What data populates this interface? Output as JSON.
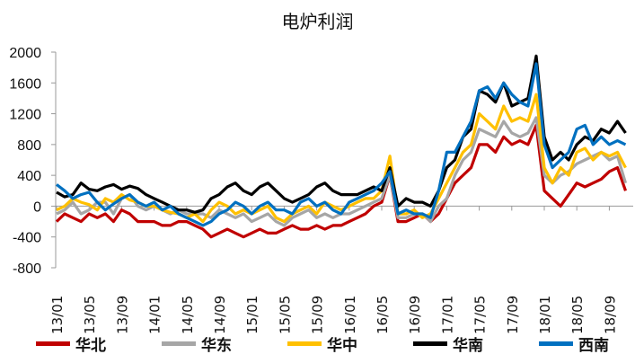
{
  "chart_data": {
    "type": "line",
    "title": "电炉利润",
    "xlabel": "",
    "ylabel": "",
    "ylim": [
      -800,
      2000
    ],
    "yticks": [
      -800,
      -400,
      0,
      400,
      800,
      1200,
      1600,
      2000
    ],
    "x_tick_labels": [
      "13/01",
      "13/05",
      "13/09",
      "14/01",
      "14/05",
      "14/09",
      "15/01",
      "15/05",
      "15/09",
      "16/01",
      "16/05",
      "16/09",
      "17/01",
      "17/05",
      "17/09",
      "18/01",
      "18/05",
      "18/09"
    ],
    "x_start": "2013-01",
    "x_frequency": "monthly",
    "legend_position": "bottom",
    "grid": false,
    "series": [
      {
        "name": "华北",
        "color": "#c00000",
        "values": [
          -200,
          -100,
          -150,
          -200,
          -100,
          -150,
          -100,
          -200,
          -50,
          -100,
          -200,
          -200,
          -200,
          -250,
          -250,
          -200,
          -200,
          -250,
          -300,
          -400,
          -350,
          -300,
          -350,
          -400,
          -350,
          -300,
          -350,
          -350,
          -300,
          -250,
          -300,
          -300,
          -250,
          -300,
          -250,
          -250,
          -200,
          -150,
          -100,
          0,
          50,
          400,
          -200,
          -200,
          -150,
          -100,
          -200,
          -100,
          100,
          300,
          400,
          500,
          800,
          800,
          700,
          900,
          800,
          850,
          800,
          1050,
          200,
          100,
          0,
          150,
          300,
          250,
          300,
          350,
          450,
          500,
          200
        ]
      },
      {
        "name": "华东",
        "color": "#a6a6a6",
        "values": [
          -100,
          -50,
          50,
          -100,
          -50,
          50,
          50,
          -100,
          100,
          150,
          0,
          -50,
          0,
          -50,
          -100,
          -50,
          -100,
          -100,
          -100,
          -150,
          -50,
          -100,
          -150,
          -100,
          -200,
          -150,
          -100,
          -200,
          -250,
          -150,
          -100,
          -50,
          -150,
          -100,
          -150,
          -100,
          -100,
          -50,
          0,
          50,
          100,
          400,
          -150,
          -150,
          -100,
          -100,
          -200,
          0,
          100,
          400,
          600,
          700,
          1000,
          950,
          900,
          1100,
          950,
          900,
          950,
          1150,
          400,
          300,
          400,
          450,
          550,
          600,
          650,
          700,
          600,
          650,
          300
        ]
      },
      {
        "name": "华中",
        "color": "#ffc000",
        "values": [
          -50,
          0,
          100,
          50,
          20,
          -50,
          100,
          50,
          150,
          80,
          50,
          0,
          0,
          -50,
          -80,
          -100,
          -150,
          -100,
          -200,
          -50,
          50,
          0,
          -100,
          -50,
          -100,
          -50,
          0,
          -150,
          -200,
          -100,
          -50,
          0,
          -100,
          50,
          0,
          -50,
          0,
          50,
          100,
          100,
          200,
          650,
          -100,
          -100,
          -50,
          -150,
          -100,
          100,
          300,
          500,
          700,
          800,
          1200,
          1100,
          1000,
          1300,
          1100,
          1150,
          1100,
          1450,
          500,
          300,
          500,
          400,
          700,
          750,
          600,
          700,
          650,
          700,
          500
        ]
      },
      {
        "name": "华南",
        "color": "#000000",
        "values": [
          180,
          120,
          150,
          300,
          220,
          200,
          250,
          280,
          220,
          260,
          230,
          150,
          100,
          50,
          0,
          -50,
          -50,
          -80,
          -50,
          100,
          150,
          250,
          300,
          200,
          150,
          250,
          300,
          200,
          100,
          50,
          100,
          150,
          250,
          300,
          200,
          150,
          150,
          150,
          200,
          250,
          200,
          500,
          0,
          100,
          50,
          50,
          0,
          200,
          500,
          600,
          900,
          1000,
          1500,
          1450,
          1350,
          1600,
          1300,
          1350,
          1400,
          1950,
          900,
          600,
          700,
          600,
          800,
          900,
          850,
          1000,
          950,
          1100,
          950
        ]
      },
      {
        "name": "西南",
        "color": "#0070c0",
        "values": [
          280,
          200,
          100,
          150,
          180,
          50,
          -50,
          30,
          100,
          150,
          50,
          0,
          50,
          -50,
          0,
          -100,
          -150,
          -200,
          -250,
          -200,
          -100,
          -50,
          50,
          0,
          -100,
          0,
          50,
          -50,
          -50,
          -100,
          50,
          100,
          0,
          50,
          -50,
          -100,
          50,
          100,
          150,
          200,
          300,
          450,
          -100,
          -50,
          -100,
          -100,
          -150,
          200,
          700,
          700,
          900,
          1100,
          1500,
          1550,
          1400,
          1600,
          1450,
          1350,
          1300,
          1850,
          800,
          500,
          600,
          700,
          1000,
          1050,
          800,
          900,
          800,
          850,
          800
        ]
      }
    ]
  }
}
